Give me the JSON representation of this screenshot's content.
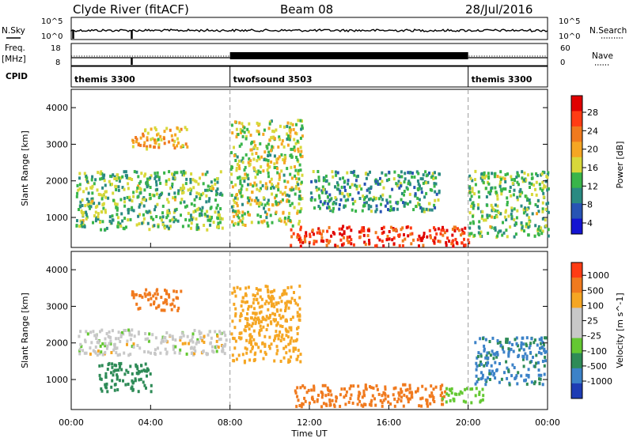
{
  "header": {
    "station": "Clyde River (fitACF)",
    "beam": "Beam 08",
    "date": "28/Jul/2016"
  },
  "status_panel": {
    "left_labels": {
      "nsky": "N.Sky",
      "freq_line1": "Freq.",
      "freq_line2": "[MHz]",
      "cpid": "CPID"
    },
    "right_labels": {
      "nsearch": "N.Search",
      "nave": "Nave"
    },
    "nsky_ticks": [
      "10^5",
      "10^0"
    ],
    "nsearch_ticks": [
      "10^5",
      "10^0"
    ],
    "freq_ticks": [
      "18",
      "8"
    ],
    "nave_ticks": [
      "60",
      "0"
    ],
    "cpid_segments": [
      {
        "label": "themis 3300",
        "start_hour": 0,
        "end_hour": 8
      },
      {
        "label": "twofsound 3503",
        "start_hour": 8,
        "end_hour": 20
      },
      {
        "label": "themis 3300",
        "start_hour": 20,
        "end_hour": 24
      }
    ]
  },
  "chart_data": [
    {
      "type": "heatmap",
      "title": "",
      "xlabel": "Time UT",
      "ylabel": "Slant Range [km]",
      "xlim": [
        0,
        24
      ],
      "ylim": [
        180,
        4500
      ],
      "x_ticks": [
        "00:00",
        "04:00",
        "08:00",
        "12:00",
        "16:00",
        "20:00",
        "00:00"
      ],
      "y_ticks": [
        "1000",
        "2000",
        "3000",
        "4000"
      ],
      "colorbar": {
        "label": "Power [dB]",
        "tick_labels": [
          "28",
          "24",
          "20",
          "16",
          "12",
          "8",
          "4"
        ],
        "range": [
          0,
          30
        ],
        "colors": [
          "#1414d2",
          "#2854b4",
          "#2a8a82",
          "#39b54a",
          "#d8d83a",
          "#f5a623",
          "#f07a1e",
          "#ff3c14",
          "#e00000"
        ]
      },
      "regions": [
        {
          "t0": 0.2,
          "t1": 7.6,
          "r0": 700,
          "r1": 2300,
          "value": 12
        },
        {
          "t0": 3.0,
          "t1": 5.8,
          "r0": 2900,
          "r1": 3500,
          "value": 18
        },
        {
          "t0": 8.0,
          "t1": 11.6,
          "r0": 800,
          "r1": 3700,
          "value": 14
        },
        {
          "t0": 11.0,
          "t1": 20.0,
          "r0": 250,
          "r1": 800,
          "value": 26
        },
        {
          "t0": 12.0,
          "t1": 18.5,
          "r0": 1200,
          "r1": 2300,
          "value": 10
        },
        {
          "t0": 20.0,
          "t1": 24.0,
          "r0": 500,
          "r1": 2300,
          "value": 12
        }
      ]
    },
    {
      "type": "heatmap",
      "title": "",
      "xlabel": "Time UT",
      "ylabel": "Slant Range [km]",
      "xlim": [
        0,
        24
      ],
      "ylim": [
        180,
        4500
      ],
      "x_ticks": [
        "00:00",
        "04:00",
        "08:00",
        "12:00",
        "16:00",
        "20:00",
        "00:00"
      ],
      "y_ticks": [
        "1000",
        "2000",
        "3000",
        "4000"
      ],
      "colorbar": {
        "label": "Velocity [m s^-1]",
        "tick_labels": [
          "1000",
          "500",
          "100",
          "25",
          "-25",
          "-100",
          "-500",
          "-1000"
        ],
        "colors": [
          "#1e3cb4",
          "#3c82c8",
          "#2e8b57",
          "#64c832",
          "#c8c8c8",
          "#c8c8c8",
          "#f5a623",
          "#f07a1e",
          "#ff3c14"
        ]
      },
      "regions": [
        {
          "t0": 0.3,
          "t1": 7.8,
          "r0": 1700,
          "r1": 2400,
          "value": 0
        },
        {
          "t0": 1.3,
          "t1": 4.0,
          "r0": 700,
          "r1": 1500,
          "value": 200
        },
        {
          "t0": 3.0,
          "t1": 5.5,
          "r0": 2900,
          "r1": 3500,
          "value": -300
        },
        {
          "t0": 8.0,
          "t1": 11.5,
          "r0": 1500,
          "r1": 3600,
          "value": -60
        },
        {
          "t0": 11.2,
          "t1": 18.8,
          "r0": 300,
          "r1": 900,
          "value": -300
        },
        {
          "t0": 18.6,
          "t1": 20.7,
          "r0": 400,
          "r1": 800,
          "value": 60
        },
        {
          "t0": 20.3,
          "t1": 23.9,
          "r0": 900,
          "r1": 2200,
          "value": 600
        }
      ]
    }
  ]
}
